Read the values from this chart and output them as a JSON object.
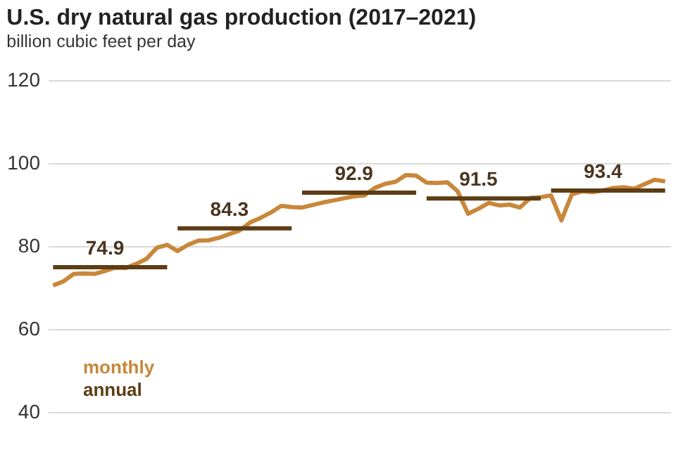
{
  "chart_data": {
    "type": "line",
    "title": "U.S. dry natural gas production (2017–2021)",
    "subtitle": "billion cubic feet per day",
    "categories": [
      null,
      null,
      null,
      null,
      null,
      null,
      null,
      null,
      null,
      null,
      null,
      null,
      null,
      null,
      null,
      null,
      null,
      null,
      null,
      null,
      null,
      null,
      null,
      null,
      null,
      null,
      null,
      null,
      null,
      null,
      null,
      null,
      null,
      null,
      null,
      null,
      null,
      null,
      null,
      null,
      null,
      null,
      null,
      null,
      null,
      null,
      null,
      null,
      null,
      null,
      null,
      null,
      null,
      null,
      null,
      null,
      null,
      null,
      null,
      null
    ],
    "series": [
      {
        "name": "monthly",
        "color": "#c8873a",
        "values": [
          70.5,
          71.5,
          73.3,
          73.4,
          73.3,
          74.0,
          74.8,
          74.7,
          75.7,
          76.9,
          79.6,
          80.3,
          78.8,
          80.3,
          81.3,
          81.4,
          82.0,
          82.9,
          83.8,
          85.7,
          86.8,
          88.1,
          89.7,
          89.4,
          89.3,
          89.9,
          90.5,
          91.0,
          91.5,
          92.0,
          92.2,
          94.0,
          95.0,
          95.5,
          97.1,
          97.0,
          95.3,
          95.2,
          95.4,
          93.2,
          87.8,
          89.0,
          90.4,
          89.8,
          90.0,
          89.3,
          91.6,
          91.8,
          92.2,
          86.2,
          92.5,
          93.2,
          93.0,
          93.4,
          94.0,
          94.2,
          93.8,
          94.9,
          96.0,
          95.6
        ]
      },
      {
        "name": "annual",
        "color": "#5c3d14",
        "values": [
          74.9,
          74.9,
          74.9,
          74.9,
          74.9,
          74.9,
          74.9,
          74.9,
          74.9,
          74.9,
          74.9,
          74.9,
          84.3,
          84.3,
          84.3,
          84.3,
          84.3,
          84.3,
          84.3,
          84.3,
          84.3,
          84.3,
          84.3,
          84.3,
          92.9,
          92.9,
          92.9,
          92.9,
          92.9,
          92.9,
          92.9,
          92.9,
          92.9,
          92.9,
          92.9,
          92.9,
          91.5,
          91.5,
          91.5,
          91.5,
          91.5,
          91.5,
          91.5,
          91.5,
          91.5,
          91.5,
          91.5,
          91.5,
          93.4,
          93.4,
          93.4,
          93.4,
          93.4,
          93.4,
          93.4,
          93.4,
          93.4,
          93.4,
          93.4,
          93.4
        ],
        "value_labels": [
          null,
          null,
          null,
          null,
          null,
          "74.9",
          null,
          null,
          null,
          null,
          null,
          null,
          null,
          null,
          null,
          null,
          null,
          "84.3",
          null,
          null,
          null,
          null,
          null,
          null,
          null,
          null,
          null,
          null,
          null,
          "92.9",
          null,
          null,
          null,
          null,
          null,
          null,
          null,
          null,
          null,
          null,
          null,
          "91.5",
          null,
          null,
          null,
          null,
          null,
          null,
          null,
          null,
          null,
          null,
          null,
          "93.4",
          null,
          null,
          null,
          null,
          null,
          null
        ]
      }
    ],
    "ylim": [
      40,
      120
    ],
    "yticks": [
      40,
      60,
      80,
      100,
      120
    ],
    "grid": "y",
    "legend": "bottom left",
    "tick_labels": "y"
  }
}
